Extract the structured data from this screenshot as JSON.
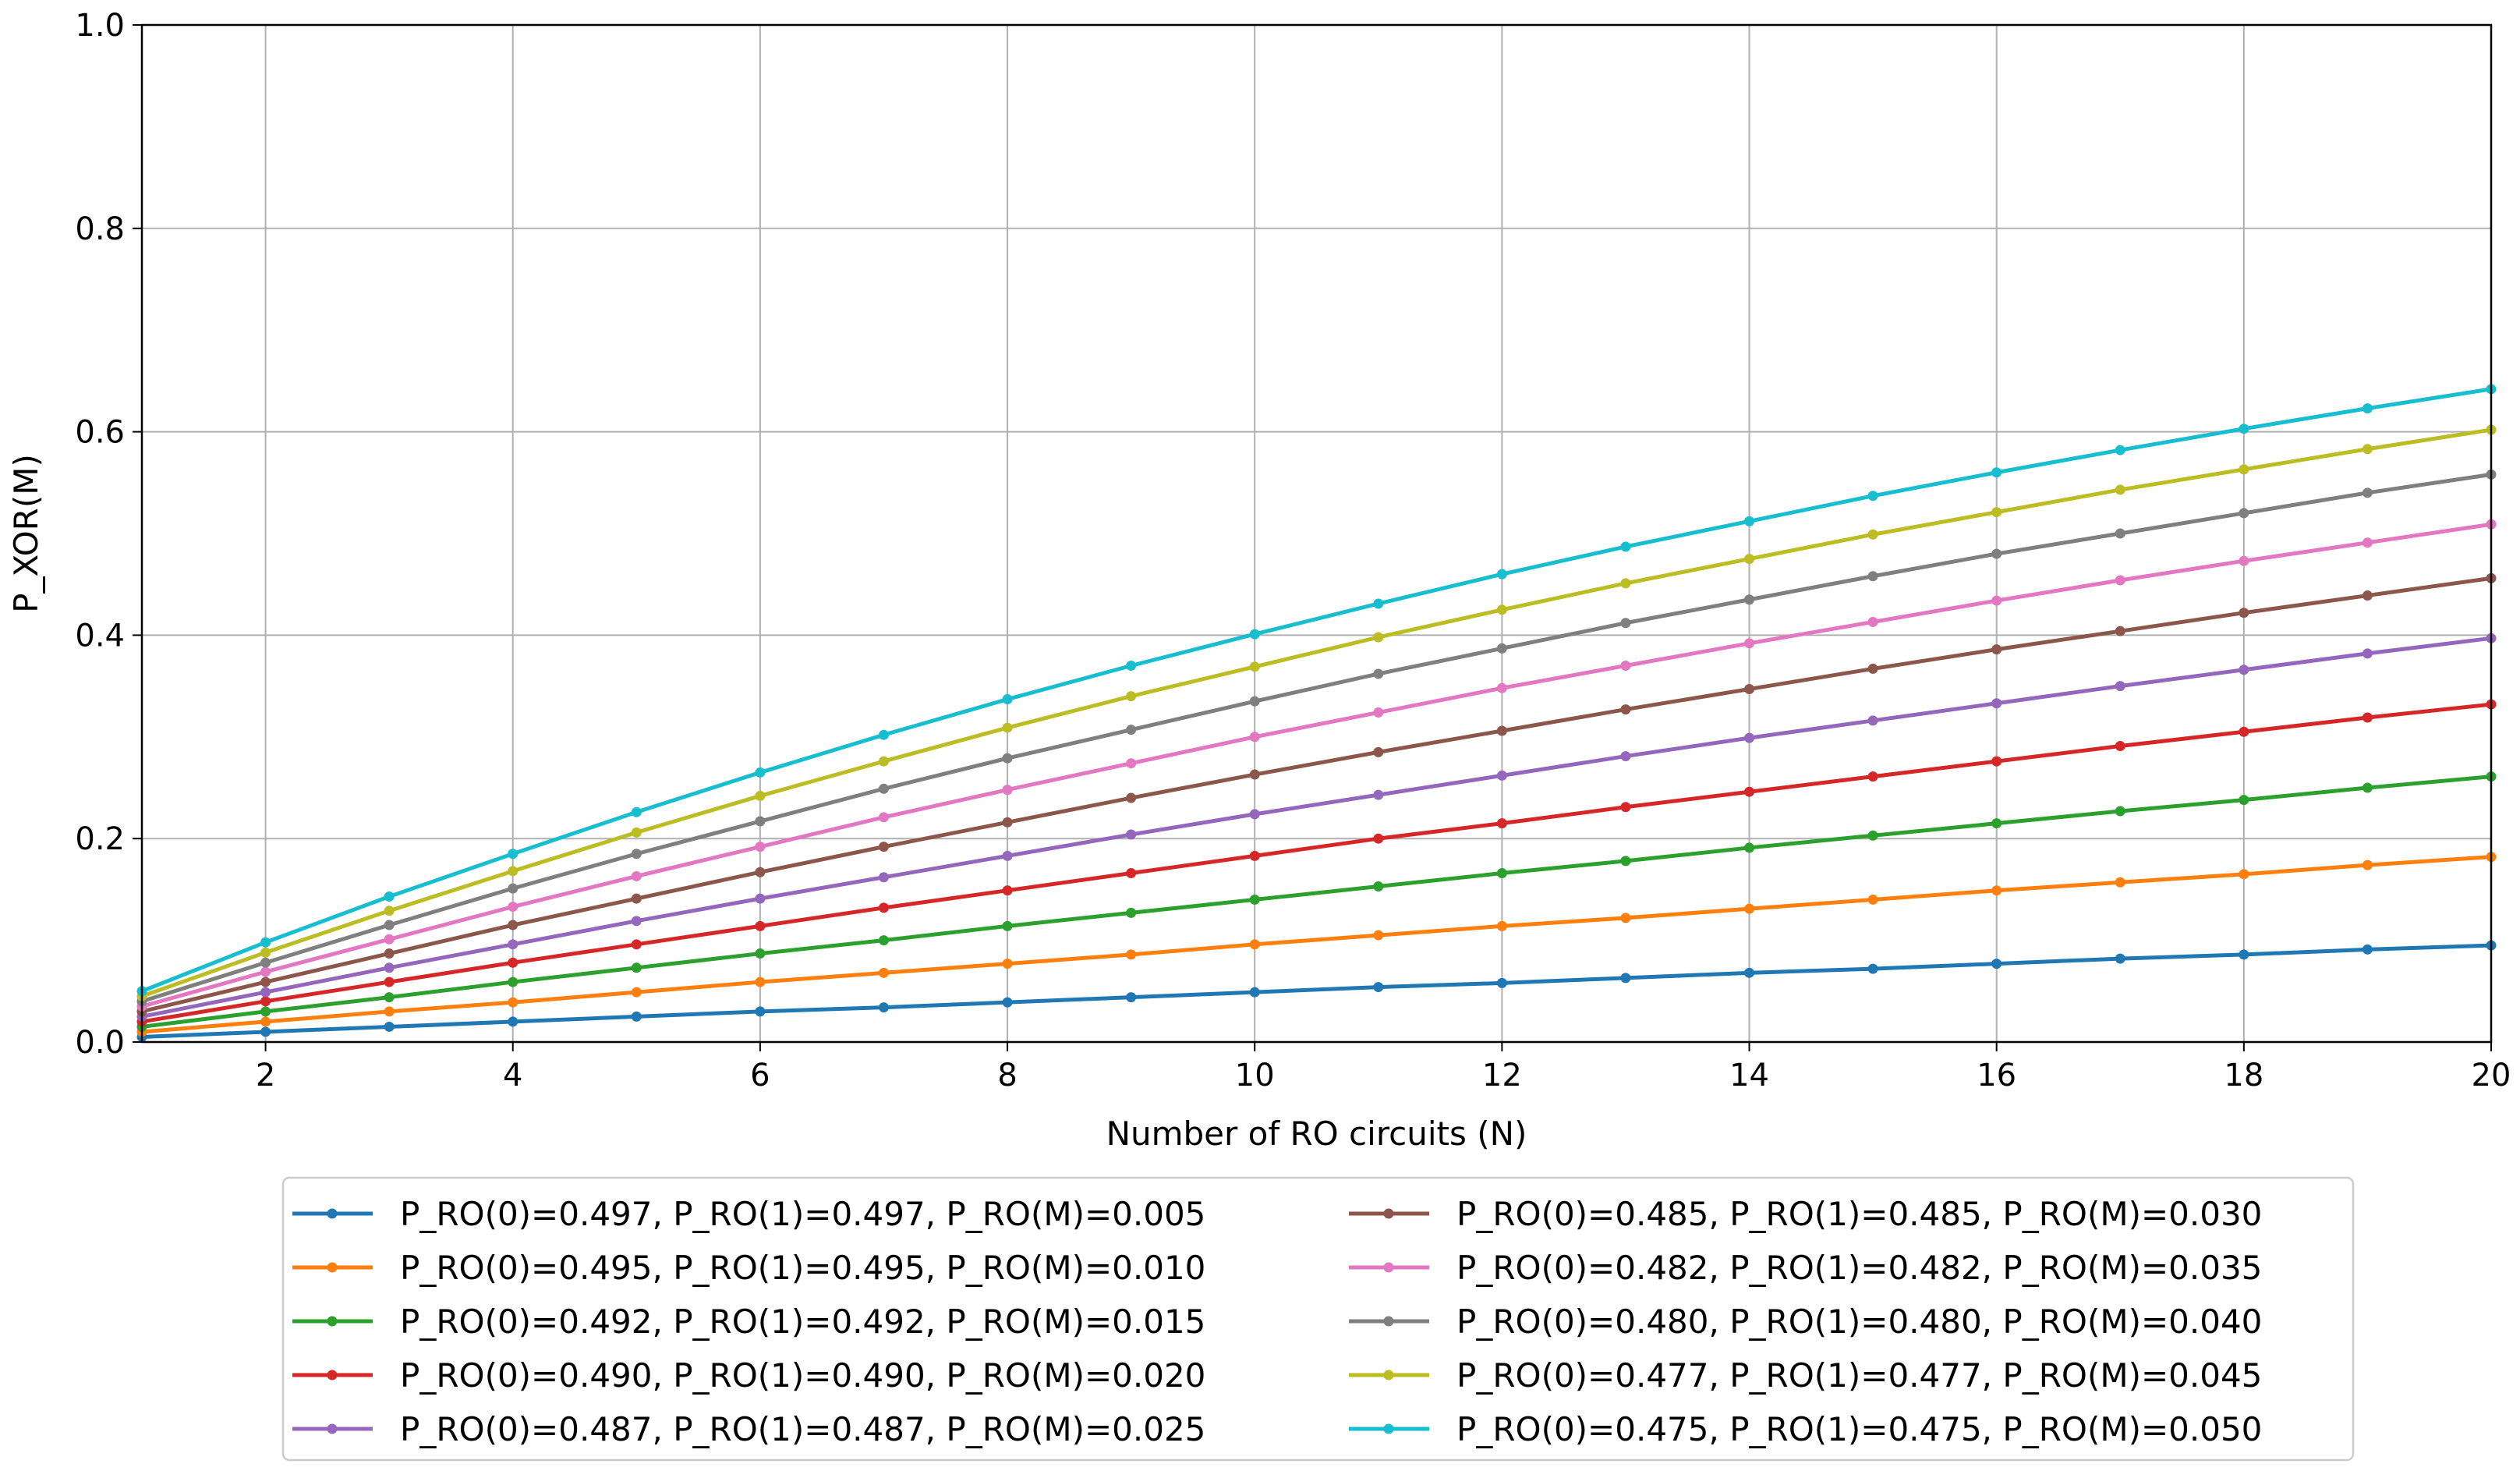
{
  "chart_data": {
    "type": "line",
    "title": "",
    "xlabel": "Number of RO circuits (N)",
    "ylabel": "P_XOR(M)",
    "xlim": [
      1,
      20
    ],
    "ylim": [
      0.0,
      1.0
    ],
    "xticks": [
      "2",
      "4",
      "6",
      "8",
      "10",
      "12",
      "14",
      "16",
      "18",
      "20"
    ],
    "yticks": [
      "0.0",
      "0.2",
      "0.4",
      "0.6",
      "0.8",
      "1.0"
    ],
    "grid": true,
    "legend_position": "below",
    "x": [
      1,
      2,
      3,
      4,
      5,
      6,
      7,
      8,
      9,
      10,
      11,
      12,
      13,
      14,
      15,
      16,
      17,
      18,
      19,
      20
    ],
    "series": [
      {
        "name": "P_RO(0)=0.497, P_RO(1)=0.497, P_RO(M)=0.005",
        "color": "#1f77b4",
        "values": [
          0.005,
          0.01,
          0.015,
          0.02,
          0.025,
          0.03,
          0.034,
          0.039,
          0.044,
          0.049,
          0.054,
          0.058,
          0.063,
          0.068,
          0.072,
          0.077,
          0.082,
          0.086,
          0.091,
          0.095
        ]
      },
      {
        "name": "P_RO(0)=0.495, P_RO(1)=0.495, P_RO(M)=0.010",
        "color": "#ff7f0e",
        "values": [
          0.01,
          0.02,
          0.03,
          0.039,
          0.049,
          0.059,
          0.068,
          0.077,
          0.086,
          0.096,
          0.105,
          0.114,
          0.122,
          0.131,
          0.14,
          0.149,
          0.157,
          0.165,
          0.174,
          0.182
        ]
      },
      {
        "name": "P_RO(0)=0.492, P_RO(1)=0.492, P_RO(M)=0.015",
        "color": "#2ca02c",
        "values": [
          0.015,
          0.03,
          0.044,
          0.059,
          0.073,
          0.087,
          0.1,
          0.114,
          0.127,
          0.14,
          0.153,
          0.166,
          0.178,
          0.191,
          0.203,
          0.215,
          0.227,
          0.238,
          0.25,
          0.261
        ]
      },
      {
        "name": "P_RO(0)=0.490, P_RO(1)=0.490, P_RO(M)=0.020",
        "color": "#d62728",
        "values": [
          0.02,
          0.04,
          0.059,
          0.078,
          0.096,
          0.114,
          0.132,
          0.149,
          0.166,
          0.183,
          0.2,
          0.215,
          0.231,
          0.246,
          0.261,
          0.276,
          0.291,
          0.305,
          0.319,
          0.332
        ]
      },
      {
        "name": "P_RO(0)=0.487, P_RO(1)=0.487, P_RO(M)=0.025",
        "color": "#9467bd",
        "values": [
          0.025,
          0.049,
          0.073,
          0.096,
          0.119,
          0.141,
          0.162,
          0.183,
          0.204,
          0.224,
          0.243,
          0.262,
          0.281,
          0.299,
          0.316,
          0.333,
          0.35,
          0.366,
          0.382,
          0.397
        ]
      },
      {
        "name": "P_RO(0)=0.485, P_RO(1)=0.485, P_RO(M)=0.030",
        "color": "#8c564b",
        "values": [
          0.03,
          0.059,
          0.087,
          0.115,
          0.141,
          0.167,
          0.192,
          0.216,
          0.24,
          0.263,
          0.285,
          0.306,
          0.327,
          0.347,
          0.367,
          0.386,
          0.404,
          0.422,
          0.439,
          0.456
        ]
      },
      {
        "name": "P_RO(0)=0.482, P_RO(1)=0.482, P_RO(M)=0.035",
        "color": "#e377c2",
        "values": [
          0.035,
          0.069,
          0.101,
          0.133,
          0.163,
          0.192,
          0.221,
          0.248,
          0.274,
          0.3,
          0.324,
          0.348,
          0.37,
          0.392,
          0.413,
          0.434,
          0.454,
          0.473,
          0.491,
          0.509
        ]
      },
      {
        "name": "P_RO(0)=0.480, P_RO(1)=0.480, P_RO(M)=0.040",
        "color": "#7f7f7f",
        "values": [
          0.04,
          0.078,
          0.115,
          0.151,
          0.185,
          0.217,
          0.249,
          0.279,
          0.307,
          0.335,
          0.362,
          0.387,
          0.412,
          0.435,
          0.458,
          0.48,
          0.5,
          0.52,
          0.54,
          0.558
        ]
      },
      {
        "name": "P_RO(0)=0.477, P_RO(1)=0.477, P_RO(M)=0.045",
        "color": "#bcbd22",
        "values": [
          0.045,
          0.088,
          0.129,
          0.168,
          0.206,
          0.242,
          0.276,
          0.309,
          0.34,
          0.369,
          0.398,
          0.425,
          0.451,
          0.475,
          0.499,
          0.521,
          0.543,
          0.563,
          0.583,
          0.602
        ]
      },
      {
        "name": "P_RO(0)=0.475, P_RO(1)=0.475, P_RO(M)=0.050",
        "color": "#17becf",
        "values": [
          0.05,
          0.098,
          0.143,
          0.185,
          0.226,
          0.265,
          0.302,
          0.337,
          0.37,
          0.401,
          0.431,
          0.46,
          0.487,
          0.512,
          0.537,
          0.56,
          0.582,
          0.603,
          0.623,
          0.642
        ]
      }
    ]
  }
}
